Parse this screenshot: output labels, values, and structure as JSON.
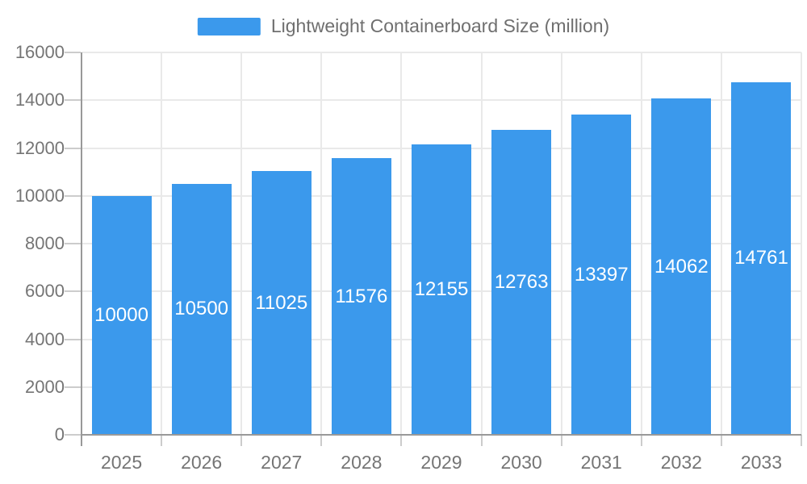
{
  "chart_data": {
    "type": "bar",
    "title": "",
    "legend": "Lightweight Containerboard Size (million)",
    "legend_position": "top-center",
    "categories": [
      "2025",
      "2026",
      "2027",
      "2028",
      "2029",
      "2030",
      "2031",
      "2032",
      "2033"
    ],
    "values": [
      10000,
      10500,
      11025,
      11576,
      12155,
      12763,
      13397,
      14062,
      14761
    ],
    "xlabel": "",
    "ylabel": "",
    "ylim": [
      0,
      16000
    ],
    "yticks": [
      0,
      2000,
      4000,
      6000,
      8000,
      10000,
      12000,
      14000,
      16000
    ],
    "grid": true,
    "bar_label_position": "inside-center",
    "colors": {
      "bar": "#3B99EC",
      "bar_label": "#FFFFFF",
      "axis_line": "#999999",
      "grid_line": "#E9E9E9",
      "tick_line": "#CCCCCC",
      "axis_text": "#757575",
      "legend_text": "#6F6F6F",
      "background": "#FFFFFF"
    }
  }
}
